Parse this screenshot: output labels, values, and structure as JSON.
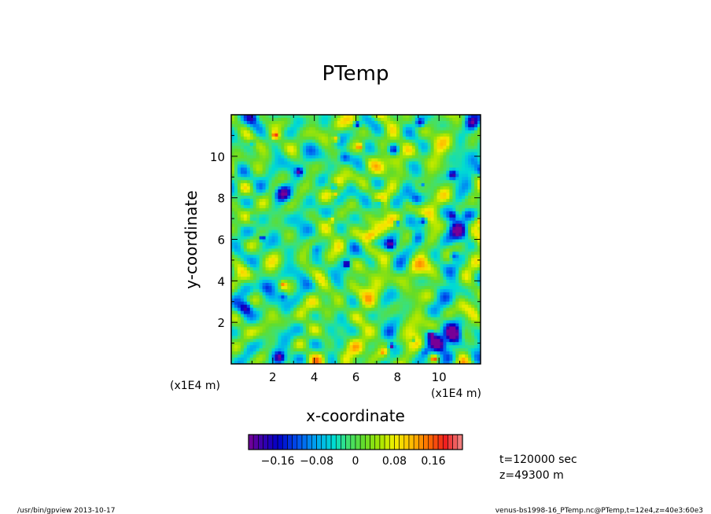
{
  "chart_data": {
    "type": "heatmap",
    "title": "PTemp",
    "xlabel": "x-coordinate",
    "ylabel": "y-coordinate",
    "x_unit": "(x1E4 m)",
    "y_unit": "(x1E4 m)",
    "xlim": [
      0,
      12
    ],
    "ylim": [
      0,
      12
    ],
    "x_ticks": [
      "2",
      "4",
      "6",
      "8",
      "10"
    ],
    "y_ticks": [
      "2",
      "4",
      "6",
      "8",
      "10"
    ],
    "colorbar": {
      "min": -0.22,
      "max": 0.22,
      "tick_labels": [
        "−0.16",
        "−0.08",
        "0",
        "0.08",
        "0.16"
      ],
      "tick_values": [
        -0.16,
        -0.08,
        0,
        0.08,
        0.16
      ]
    },
    "annotations": {
      "time": "t=120000 sec",
      "height": "z=49300 m"
    },
    "footer_left": "/usr/bin/gpview   2013-10-17",
    "footer_right": "venus-bs1998-16_PTemp.nc@PTemp,t=12e4,z=40e3:60e3"
  }
}
